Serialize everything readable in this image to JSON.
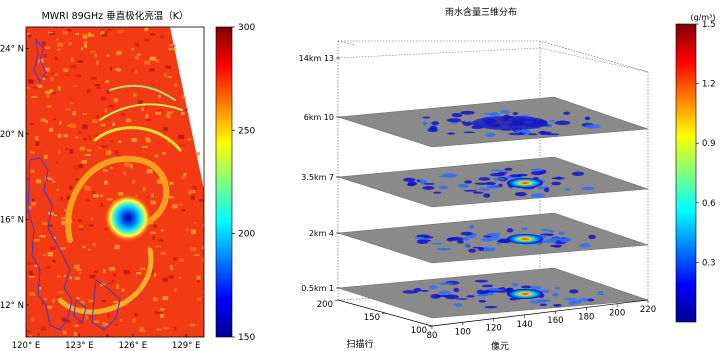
{
  "chart_data": [
    {
      "type": "heatmap",
      "title": "MWRI 89GHz 垂直极化亮温（K）",
      "x_ticks": [
        "120° E",
        "123° E",
        "126° E",
        "129° E"
      ],
      "y_ticks": [
        "24° N",
        "20° N",
        "16° N",
        "12° N"
      ],
      "xlim": [
        120,
        130
      ],
      "ylim": [
        10.5,
        25
      ],
      "colorbar": {
        "min": 150,
        "max": 300,
        "ticks": [
          150,
          200,
          250,
          300
        ]
      },
      "colors": {
        "coastline": "#3a3ad0",
        "swath_edge": "#ffffff"
      }
    },
    {
      "type": "heatmap",
      "title": "雨水含量三维分布",
      "xlabel": "像元",
      "ylabel": "扫描行",
      "x_ticks": [
        "80",
        "100",
        "120",
        "140",
        "160",
        "180",
        "200",
        "220"
      ],
      "y_ticks": [
        "100",
        "150",
        "200"
      ],
      "xlim": [
        80,
        220
      ],
      "ylim": [
        100,
        200
      ],
      "z_ticks": [
        "0.5km  1",
        "2km  4",
        "3.5km  7",
        "6km  10",
        "14km  13"
      ],
      "layers": [
        {
          "level": 1,
          "height": "0.5km"
        },
        {
          "level": 4,
          "height": "2km"
        },
        {
          "level": 7,
          "height": "3.5km"
        },
        {
          "level": 10,
          "height": "6km"
        }
      ],
      "colorbar": {
        "label": "(g/m³)",
        "min": 0,
        "max": 1.5,
        "ticks": [
          "0.3",
          "0.6",
          "0.9",
          "1.2",
          "1.5"
        ]
      },
      "colors": {
        "background_plane": "#8a8a8a"
      }
    }
  ]
}
